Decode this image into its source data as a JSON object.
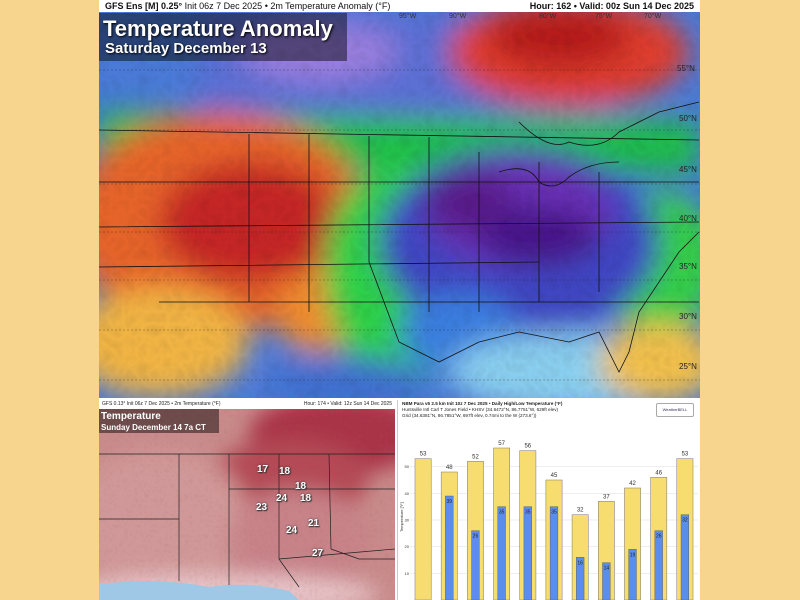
{
  "top_panel": {
    "header_model": "GFS Ens [M] 0.25°",
    "header_init": "Init 06z 7 Dec 2025 • 2m Temperature Anomaly (°F)",
    "header_valid": "Hour: 162 • Valid: 00z Sun 14 Dec 2025",
    "title": "Temperature Anomaly",
    "subtitle": "Saturday December 13",
    "lon_labels": [
      "95°W",
      "90°W",
      "80°W",
      "75°W",
      "70°W"
    ],
    "lat_labels": [
      "55°N",
      "50°N",
      "45°N",
      "40°N",
      "35°N",
      "30°N",
      "25°N"
    ]
  },
  "bottom_left": {
    "header_left": "GFS 0.13° Init 06z 7 Dec 2025 • 2m Temperature (°F)",
    "header_right": "Hour: 174 • Valid: 12z Sun 14 Dec 2025",
    "title": "Temperature",
    "subtitle": "Sunday December 14 7a CT",
    "temps": [
      "17",
      "18",
      "18",
      "24",
      "18",
      "23",
      "24",
      "21",
      "27"
    ]
  },
  "bottom_right": {
    "header_lines": [
      "NBM Para v5 2.5 km Init 10z 7 Dec 2025 • Daily High/Low Temperature (°F)",
      "Huntsville Intl Carl T Jones Field • KHSV (34.6472°N, 86.7751°W, 629ft elev)",
      "Grid (34.6381°N, 86.7851°W, 697ft elev, 0.74mi to the W (273.6°))"
    ],
    "logo_text": "WeatherBELL",
    "y_axis_label": "Temperature [°F]"
  },
  "chart_data": {
    "type": "bar",
    "ylim": [
      0,
      60
    ],
    "y_ticks": [
      10,
      20,
      30,
      40,
      50
    ],
    "series": [
      {
        "name": "",
        "color": "#f7dc6f",
        "values": [
          53,
          48,
          52,
          57,
          56,
          45,
          32,
          37,
          42,
          46,
          53
        ]
      },
      {
        "name": "",
        "color": "#5b8def",
        "values": [
          null,
          39,
          26,
          35,
          35,
          35,
          16,
          14,
          19,
          26,
          32
        ]
      }
    ],
    "high_labels": [
      "53",
      "48",
      "52",
      "57",
      "56",
      "45",
      "32",
      "37",
      "42",
      "46",
      "53"
    ],
    "low_labels": [
      "",
      "39",
      "26",
      "35",
      "35",
      "35",
      "16",
      "14",
      "19",
      "26",
      "32"
    ]
  },
  "colors": {
    "page_background": "#f7d58e",
    "cold_purple": "#6a1b9a",
    "cool_blue": "#3949ab",
    "neutral_green": "#2ecc40",
    "warm_orange": "#f57c00",
    "hot_red": "#c62828"
  }
}
